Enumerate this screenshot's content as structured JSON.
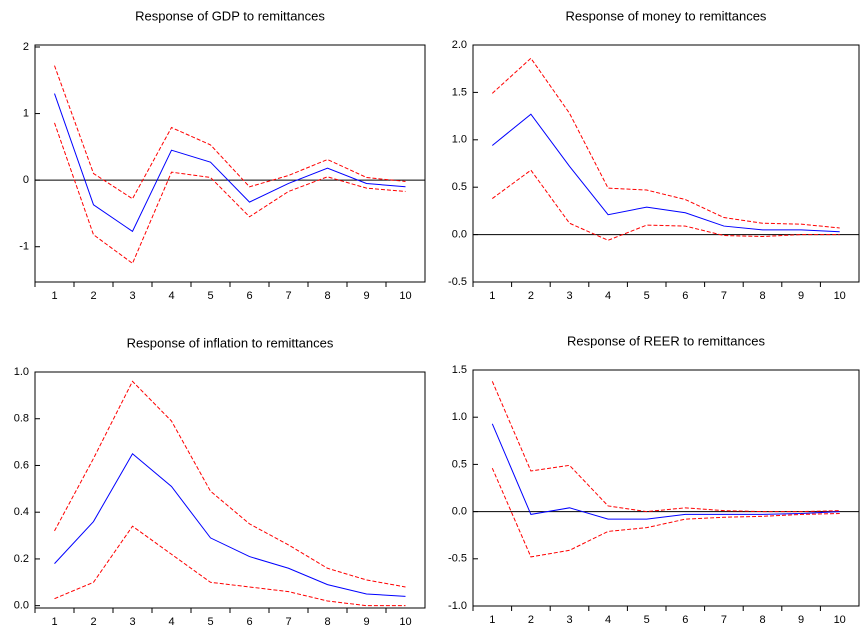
{
  "chart_data": [
    {
      "type": "line",
      "title": "Response of GDP to remittances",
      "categories": [
        "1",
        "2",
        "3",
        "4",
        "5",
        "6",
        "7",
        "8",
        "9",
        "10"
      ],
      "ylim": [
        -1.53,
        2.03
      ],
      "yticks": [
        -1,
        0,
        1,
        2
      ],
      "hline": 0,
      "series": [
        {
          "color": "#0000ff",
          "style": "solid",
          "values": [
            1.3,
            -0.37,
            -0.77,
            0.45,
            0.27,
            -0.33,
            -0.05,
            0.18,
            -0.05,
            -0.1
          ]
        },
        {
          "color": "#ff0000",
          "style": "dashed",
          "values": [
            1.72,
            0.1,
            -0.28,
            0.79,
            0.53,
            -0.1,
            0.07,
            0.31,
            0.04,
            -0.02
          ]
        },
        {
          "color": "#ff0000",
          "style": "dashed",
          "values": [
            0.86,
            -0.82,
            -1.25,
            0.12,
            0.04,
            -0.55,
            -0.17,
            0.05,
            -0.12,
            -0.17
          ]
        }
      ]
    },
    {
      "type": "line",
      "title": "Response of money to remittances",
      "categories": [
        "1",
        "2",
        "3",
        "4",
        "5",
        "6",
        "7",
        "8",
        "9",
        "10"
      ],
      "ylim": [
        -0.5,
        2.0
      ],
      "yticks": [
        -0.5,
        {
          "value": 0,
          "label": "0.0"
        },
        0.5,
        {
          "value": 1,
          "label": "1.0"
        },
        1.5,
        {
          "value": 2,
          "label": "2.0"
        }
      ],
      "hline": 0,
      "series": [
        {
          "color": "#0000ff",
          "style": "solid",
          "values": [
            0.94,
            1.27,
            0.72,
            0.21,
            0.29,
            0.23,
            0.09,
            0.05,
            0.05,
            0.03
          ]
        },
        {
          "color": "#ff0000",
          "style": "dashed",
          "values": [
            1.49,
            1.86,
            1.28,
            0.49,
            0.47,
            0.37,
            0.18,
            0.12,
            0.11,
            0.07
          ]
        },
        {
          "color": "#ff0000",
          "style": "dashed",
          "values": [
            0.38,
            0.68,
            0.12,
            -0.06,
            0.1,
            0.09,
            -0.01,
            -0.02,
            0.0,
            0.0
          ]
        }
      ]
    },
    {
      "type": "line",
      "title": "Response of inflation to remittances",
      "categories": [
        "1",
        "2",
        "3",
        "4",
        "5",
        "6",
        "7",
        "8",
        "9",
        "10"
      ],
      "ylim": [
        -0.01,
        1.0
      ],
      "yticks": [
        {
          "value": 0,
          "label": "0.0"
        },
        0.2,
        0.4,
        0.6,
        0.8,
        {
          "value": 1,
          "label": "1.0"
        }
      ],
      "series": [
        {
          "color": "#0000ff",
          "style": "solid",
          "values": [
            0.18,
            0.36,
            0.65,
            0.51,
            0.29,
            0.21,
            0.16,
            0.09,
            0.05,
            0.04
          ]
        },
        {
          "color": "#ff0000",
          "style": "dashed",
          "values": [
            0.32,
            0.63,
            0.96,
            0.79,
            0.49,
            0.35,
            0.26,
            0.16,
            0.11,
            0.08
          ]
        },
        {
          "color": "#ff0000",
          "style": "dashed",
          "values": [
            0.03,
            0.1,
            0.34,
            0.22,
            0.1,
            0.08,
            0.06,
            0.02,
            0.0,
            0.0
          ]
        }
      ]
    },
    {
      "type": "line",
      "title": "Response of REER to remittances",
      "categories": [
        "1",
        "2",
        "3",
        "4",
        "5",
        "6",
        "7",
        "8",
        "9",
        "10"
      ],
      "ylim": [
        -1.0,
        1.5
      ],
      "yticks": [
        {
          "value": -1,
          "label": "-1.0"
        },
        -0.5,
        {
          "value": 0,
          "label": "0.0"
        },
        0.5,
        {
          "value": 1,
          "label": "1.0"
        },
        1.5
      ],
      "hline": 0,
      "series": [
        {
          "color": "#0000ff",
          "style": "solid",
          "values": [
            0.93,
            -0.03,
            0.04,
            -0.08,
            -0.08,
            -0.03,
            -0.03,
            -0.03,
            -0.02,
            0.0
          ]
        },
        {
          "color": "#ff0000",
          "style": "dashed",
          "values": [
            1.38,
            0.43,
            0.49,
            0.06,
            0.0,
            0.04,
            0.01,
            0.0,
            0.0,
            0.01
          ]
        },
        {
          "color": "#ff0000",
          "style": "dashed",
          "values": [
            0.46,
            -0.48,
            -0.41,
            -0.21,
            -0.17,
            -0.08,
            -0.06,
            -0.05,
            -0.03,
            -0.02
          ]
        }
      ]
    }
  ]
}
